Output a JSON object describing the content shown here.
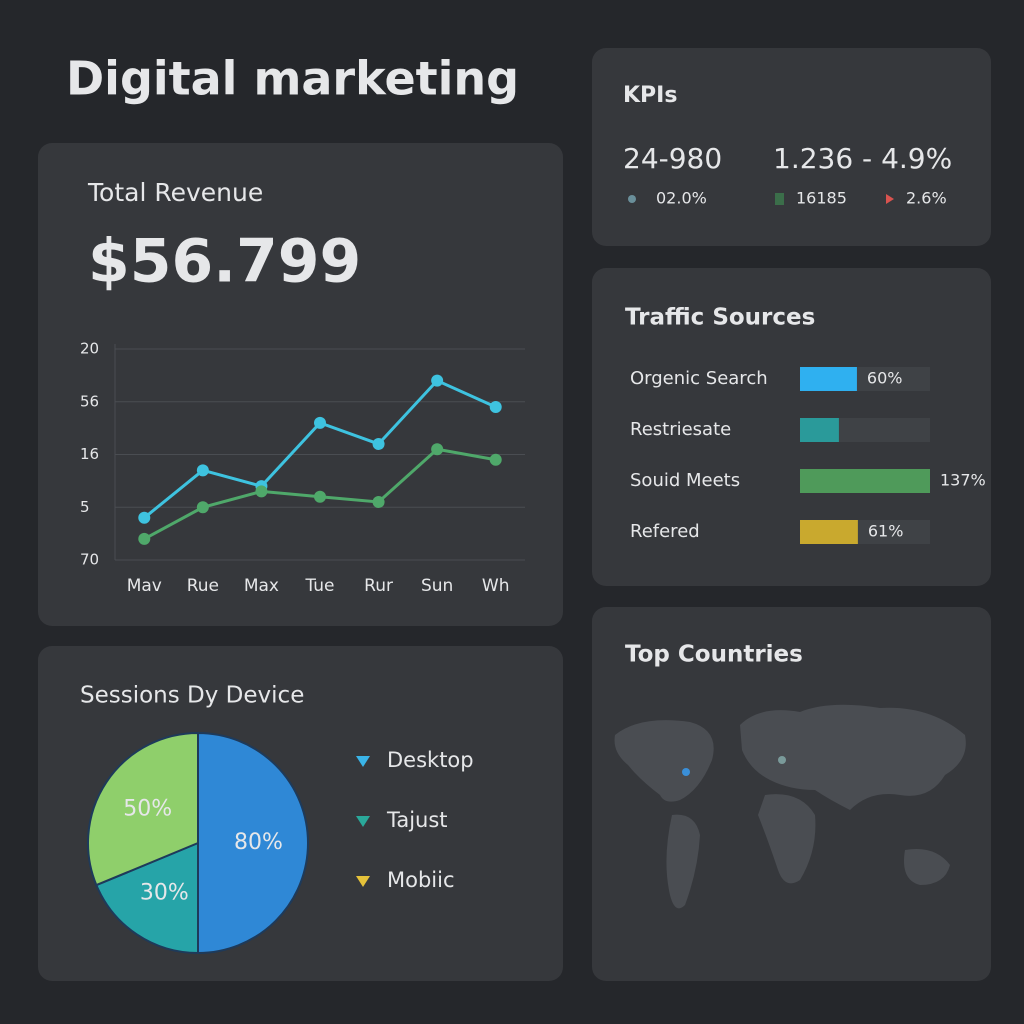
{
  "header": {
    "title": "Digital marketing"
  },
  "revenue": {
    "title": "Total Revenue",
    "value": "$56.799",
    "chart_data": {
      "type": "line",
      "categories": [
        "Mav",
        "Rue",
        "Max",
        "Tue",
        "Rur",
        "Sun",
        "Wh"
      ],
      "ylim": [
        0,
        4
      ],
      "yticks": [
        {
          "value": 0,
          "label": "70"
        },
        {
          "value": 1,
          "label": "5"
        },
        {
          "value": 2,
          "label": "16"
        },
        {
          "value": 3,
          "label": "56"
        },
        {
          "value": 4,
          "label": "20"
        }
      ],
      "grid": true,
      "series": [
        {
          "color": "#3ec3e0",
          "values": [
            0.8,
            1.7,
            1.4,
            2.6,
            2.2,
            3.4,
            2.9
          ]
        },
        {
          "color": "#4fa86a",
          "values": [
            0.4,
            1.0,
            1.3,
            1.2,
            1.1,
            2.1,
            1.9
          ]
        }
      ]
    }
  },
  "kpis": {
    "title": "KPIs",
    "items": [
      {
        "value": "24-980",
        "change": "02.0%",
        "color": "#4a9fc0"
      },
      {
        "value": "1.236 - 4.9%",
        "change": "16185",
        "color": "#4caf50"
      }
    ],
    "extra": {
      "change": "2.6%",
      "color": "#d9534f"
    }
  },
  "traffic": {
    "title": "Traffic Sources",
    "chart_data": {
      "type": "hbar",
      "categories": [
        "Orgenic Search",
        "Restriesate",
        "Souid Meets",
        "Refered"
      ],
      "values": [
        60,
        41,
        137,
        61
      ],
      "value_labels": [
        "60%",
        null,
        "137%",
        "61%"
      ],
      "colors": [
        "#2fb0f0",
        "#2a9a9a",
        "#4f9a5a",
        "#c9a92e"
      ]
    }
  },
  "sessions": {
    "title": "Sessions Dy Device",
    "chart_data": {
      "type": "pie",
      "categories": [
        "Desktop",
        "Tajust",
        "Mobiic"
      ],
      "values": [
        80,
        30,
        50
      ],
      "value_labels": [
        "80%",
        "30%",
        "50%"
      ],
      "colors": [
        "#2f88d6",
        "#26a4a8",
        "#8fcf6b"
      ],
      "legend_colors": [
        "#3ab4e8",
        "#2aa89a",
        "#e5c23a"
      ]
    }
  },
  "countries": {
    "title": "Top Countries"
  }
}
